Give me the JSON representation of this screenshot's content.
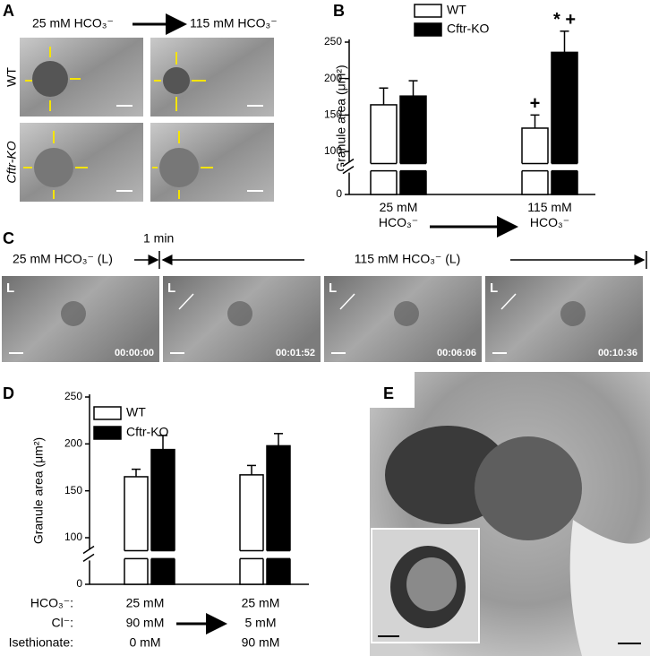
{
  "panels": {
    "A": {
      "letter": "A",
      "condition_before": "25 mM HCO₃⁻",
      "condition_after": "115 mM HCO₃⁻",
      "rows": [
        "WT",
        "Cftr-KO"
      ]
    },
    "C": {
      "letter": "C",
      "interval": "1 min",
      "phase_before": "25 mM HCO₃⁻ (L)",
      "phase_after": "115 mM HCO₃⁻ (L)",
      "frames": [
        {
          "label": "L",
          "time": "00:00:00"
        },
        {
          "label": "L",
          "time": "00:01:52"
        },
        {
          "label": "L",
          "time": "00:06:06"
        },
        {
          "label": "L",
          "time": "00:10:36"
        }
      ]
    },
    "E": {
      "letter": "E"
    }
  },
  "chart_data": [
    {
      "panel": "B",
      "type": "bar",
      "ylabel": "Granule area (μm²)",
      "categories": [
        "25 mM HCO₃⁻",
        "115 mM HCO₃⁻"
      ],
      "series": [
        {
          "name": "WT",
          "color": "#ffffff",
          "values": [
            164,
            132
          ],
          "errors": [
            23,
            18
          ],
          "significance": [
            null,
            "+"
          ]
        },
        {
          "name": "Cftr-KO",
          "color": "#000000",
          "values": [
            176,
            236
          ],
          "errors": [
            21,
            29
          ],
          "significance": [
            null,
            "* +"
          ]
        }
      ],
      "ylim": [
        0,
        250
      ],
      "yticks": [
        0,
        100,
        150,
        200,
        250
      ],
      "axis_break": true
    },
    {
      "panel": "D",
      "type": "bar",
      "ylabel": "Granule area (μm²)",
      "conditions": [
        {
          "label": "HCO₃⁻:",
          "values": [
            "25 mM",
            "25 mM"
          ]
        },
        {
          "label": "Cl⁻:",
          "values": [
            "90 mM",
            "5 mM"
          ]
        },
        {
          "label": "Isethionate:",
          "values": [
            "0 mM",
            "90 mM"
          ]
        }
      ],
      "series": [
        {
          "name": "WT",
          "color": "#ffffff",
          "values": [
            165,
            167
          ],
          "errors": [
            8,
            10
          ]
        },
        {
          "name": "Cftr-KO",
          "color": "#000000",
          "values": [
            194,
            198
          ],
          "errors": [
            15,
            13
          ]
        }
      ],
      "ylim": [
        0,
        250
      ],
      "yticks": [
        0,
        100,
        150,
        200,
        250
      ],
      "axis_break": true
    }
  ]
}
